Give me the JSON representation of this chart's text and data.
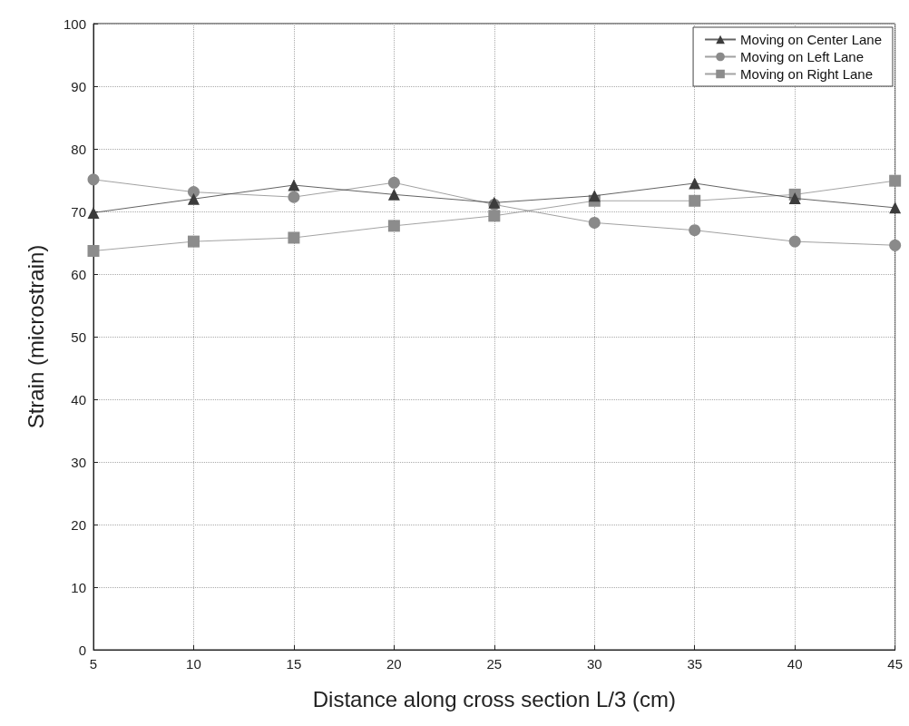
{
  "chart_data": {
    "type": "line",
    "xlabel": "Distance along cross section L/3 (cm)",
    "ylabel": "Strain (microstrain)",
    "x": [
      5,
      10,
      15,
      20,
      25,
      30,
      35,
      40,
      45
    ],
    "xlim": [
      5,
      45
    ],
    "xticks": [
      5,
      10,
      15,
      20,
      25,
      30,
      35,
      40,
      45
    ],
    "ylim": [
      0,
      100
    ],
    "yticks": [
      0,
      10,
      20,
      30,
      40,
      50,
      60,
      70,
      80,
      90,
      100
    ],
    "grid": true,
    "legend": "top right",
    "series": [
      {
        "name": "Moving on Center Lane",
        "color": "#3c3c3c",
        "marker": "triangle",
        "values": [
          69.8,
          72,
          74.2,
          72.7,
          71.4,
          72.5,
          74.5,
          72.1,
          70.6
        ]
      },
      {
        "name": "Moving on Left Lane",
        "color": "#8a8a8a",
        "marker": "circle",
        "values": [
          75.1,
          73.1,
          72.3,
          74.6,
          71.1,
          68.2,
          67,
          65.2,
          64.6
        ]
      },
      {
        "name": "Moving on Right Lane",
        "color": "#8c8c8c",
        "marker": "square",
        "values": [
          63.7,
          65.2,
          65.8,
          67.7,
          69.3,
          71.7,
          71.7,
          72.7,
          74.9
        ]
      }
    ]
  }
}
